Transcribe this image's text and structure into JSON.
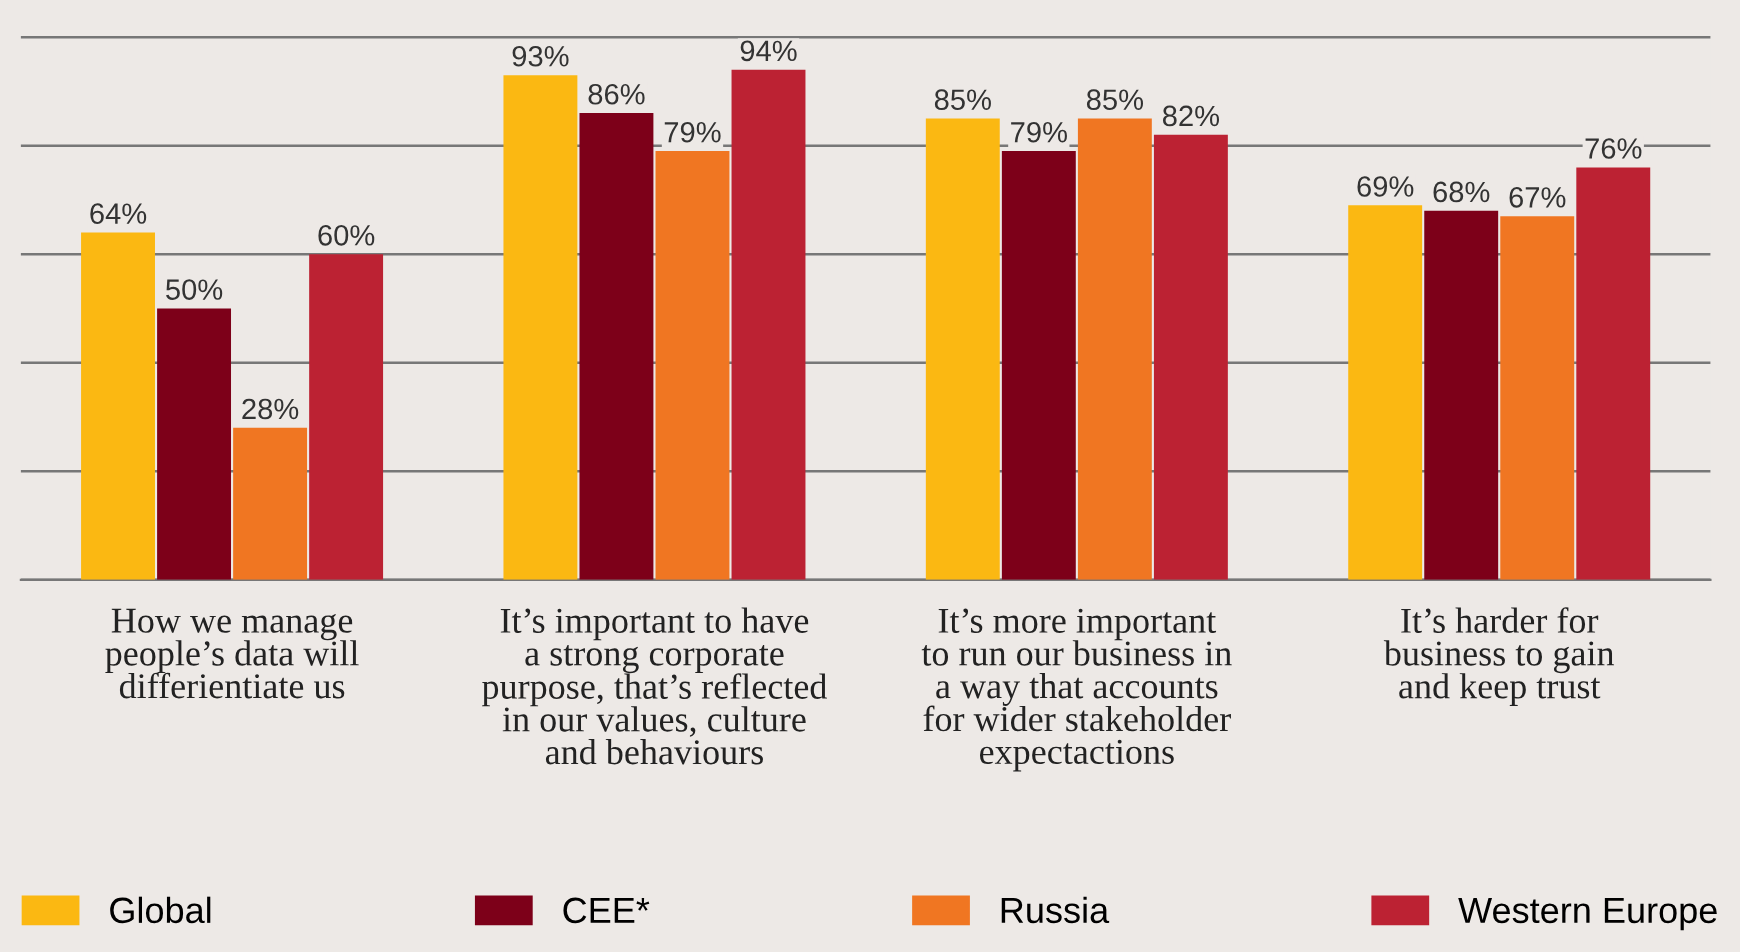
{
  "chart_data": {
    "type": "bar",
    "categories": [
      "How we manage\npeople’s data will\ndifferientiate us",
      "It’s important to have\na strong corporate\npurpose, that’s reflected\nin our values, culture\nand behaviours",
      "It’s more important\nto run our business in\na way that accounts\nfor wider stakeholder\nexpectactions",
      "It’s harder for\nbusiness to gain\nand keep trust"
    ],
    "series": [
      {
        "name": "Global",
        "color": "#fbb812",
        "values": [
          64,
          93,
          85,
          69
        ],
        "value_labels": [
          "64%",
          "93%",
          "85%",
          "69%"
        ]
      },
      {
        "name": "CEE*",
        "color": "#7d0019",
        "values": [
          50,
          86,
          79,
          68
        ],
        "value_labels": [
          "50%",
          "86%",
          "79%",
          "68%"
        ]
      },
      {
        "name": "Russia",
        "color": "#f07622",
        "values": [
          28,
          79,
          85,
          67
        ],
        "value_labels": [
          "28%",
          "79%",
          "85%",
          "67%"
        ]
      },
      {
        "name": "Western Europe",
        "color": "#bc2233",
        "values": [
          60,
          94,
          82,
          76
        ],
        "value_labels": [
          "60%",
          "94%",
          "82%",
          "76%"
        ]
      }
    ],
    "tick_labels": "x",
    "grid": "y",
    "legend": "bottom"
  }
}
